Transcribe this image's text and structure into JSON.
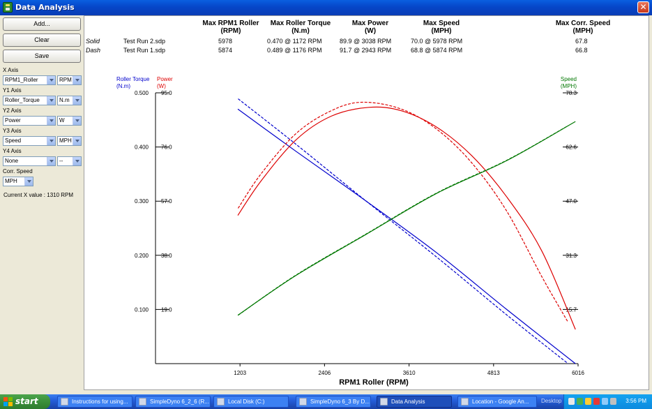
{
  "window": {
    "title": "Data Analysis",
    "close_glyph": "✕"
  },
  "sidebar": {
    "add_label": "Add...",
    "clear_label": "Clear",
    "save_label": "Save",
    "x_axis": {
      "label": "X Axis",
      "field": "RPM1_Roller",
      "unit": "RPM"
    },
    "y1_axis": {
      "label": "Y1 Axis",
      "field": "Roller_Torque",
      "unit": "N.m"
    },
    "y2_axis": {
      "label": "Y2 Axis",
      "field": "Power",
      "unit": "W"
    },
    "y3_axis": {
      "label": "Y3 Axis",
      "field": "Speed",
      "unit": "MPH"
    },
    "y4_axis": {
      "label": "Y4 Axis",
      "field": "None",
      "unit": "--"
    },
    "corr_speed": {
      "label": "Corr. Speed",
      "value": "MPH"
    },
    "current_x": "Current X value : 1310 RPM"
  },
  "summary": {
    "headers": [
      {
        "line1": "Max RPM1 Roller",
        "line2": "(RPM)"
      },
      {
        "line1": "Max Roller Torque",
        "line2": "(N.m)"
      },
      {
        "line1": "Max Power",
        "line2": "(W)"
      },
      {
        "line1": "Max Speed",
        "line2": "(MPH)"
      },
      {
        "line1": "Max Corr. Speed",
        "line2": "(MPH)"
      }
    ],
    "rows": [
      {
        "style": "Solid",
        "file": "Test Run 2.sdp",
        "rpm": "5978",
        "torque": "0.470 @ 1172 RPM",
        "power": "89.9 @ 3038 RPM",
        "speed": "70.0 @ 5978 RPM",
        "corr": "67.8"
      },
      {
        "style": "Dash",
        "file": "Test Run 1.sdp",
        "rpm": "5874",
        "torque": "0.489 @ 1176 RPM",
        "power": "91.7 @ 2943 RPM",
        "speed": "68.8 @ 5874 RPM",
        "corr": "66.8"
      }
    ]
  },
  "chart_data": {
    "type": "line",
    "xlabel": "RPM1 Roller (RPM)",
    "x_ticks": [
      "1203",
      "2406",
      "3610",
      "4813",
      "6016"
    ],
    "xlim": [
      0,
      6016
    ],
    "y1": {
      "title": "Roller Torque",
      "unit": "(N.m)",
      "color": "#0000cc",
      "ticks": [
        "0.500",
        "0.400",
        "0.300",
        "0.200",
        "0.100"
      ],
      "ylim": [
        0,
        0.5
      ]
    },
    "y2": {
      "title": "Power",
      "unit": "(W)",
      "color": "#dd0000",
      "ticks": [
        "95.0",
        "76.0",
        "57.0",
        "38.0",
        "19.0"
      ],
      "ylim": [
        0,
        95
      ]
    },
    "y3": {
      "title": "Speed",
      "unit": "(MPH)",
      "color": "#007700",
      "ticks": [
        "78.3",
        "62.6",
        "47.0",
        "31.3",
        "15.7"
      ],
      "ylim": [
        0,
        78.3
      ]
    },
    "series": [
      {
        "axis": "y1",
        "dash": false,
        "x": [
          1172,
          2000,
          3000,
          4000,
          5000,
          5978
        ],
        "y": [
          0.47,
          0.392,
          0.3,
          0.205,
          0.1,
          0.0
        ]
      },
      {
        "axis": "y1",
        "dash": true,
        "x": [
          1176,
          2000,
          3000,
          4000,
          5000,
          5874
        ],
        "y": [
          0.489,
          0.405,
          0.3,
          0.197,
          0.09,
          0.0
        ]
      },
      {
        "axis": "y2",
        "dash": false,
        "x": [
          1172,
          1500,
          2000,
          2500,
          3038,
          3500,
          4000,
          4500,
          5000,
          5500,
          5978
        ],
        "y": [
          52.0,
          64.0,
          78.5,
          86.8,
          89.9,
          88.7,
          83.0,
          73.0,
          58.5,
          39.5,
          12.0
        ]
      },
      {
        "axis": "y2",
        "dash": true,
        "x": [
          1176,
          1500,
          2000,
          2500,
          2943,
          3500,
          4000,
          4500,
          5000,
          5500,
          5874
        ],
        "y": [
          54.5,
          66.5,
          80.7,
          88.7,
          91.7,
          89.3,
          82.3,
          70.5,
          53.5,
          30.5,
          14.5
        ]
      },
      {
        "axis": "y3",
        "dash": false,
        "x": [
          1172,
          2000,
          3000,
          4000,
          5000,
          5978
        ],
        "y": [
          14.0,
          25.5,
          37.4,
          49.2,
          58.7,
          70.0
        ]
      },
      {
        "axis": "y3",
        "dash": true,
        "x": [
          1176,
          2000,
          3000,
          4000,
          5000,
          5874
        ],
        "y": [
          14.0,
          25.6,
          37.5,
          49.3,
          58.8,
          68.8
        ]
      }
    ]
  },
  "taskbar": {
    "start_label": "start",
    "tasks": [
      "Instructions for using...",
      "SimpleDyno 6_2_6 (R...",
      "Local Disk (C:)",
      "SimpleDyno 6_3 By D...",
      "Data Analysis",
      "Location - Google An..."
    ],
    "desktop_label": "Desktop",
    "clock": "3:56 PM"
  }
}
